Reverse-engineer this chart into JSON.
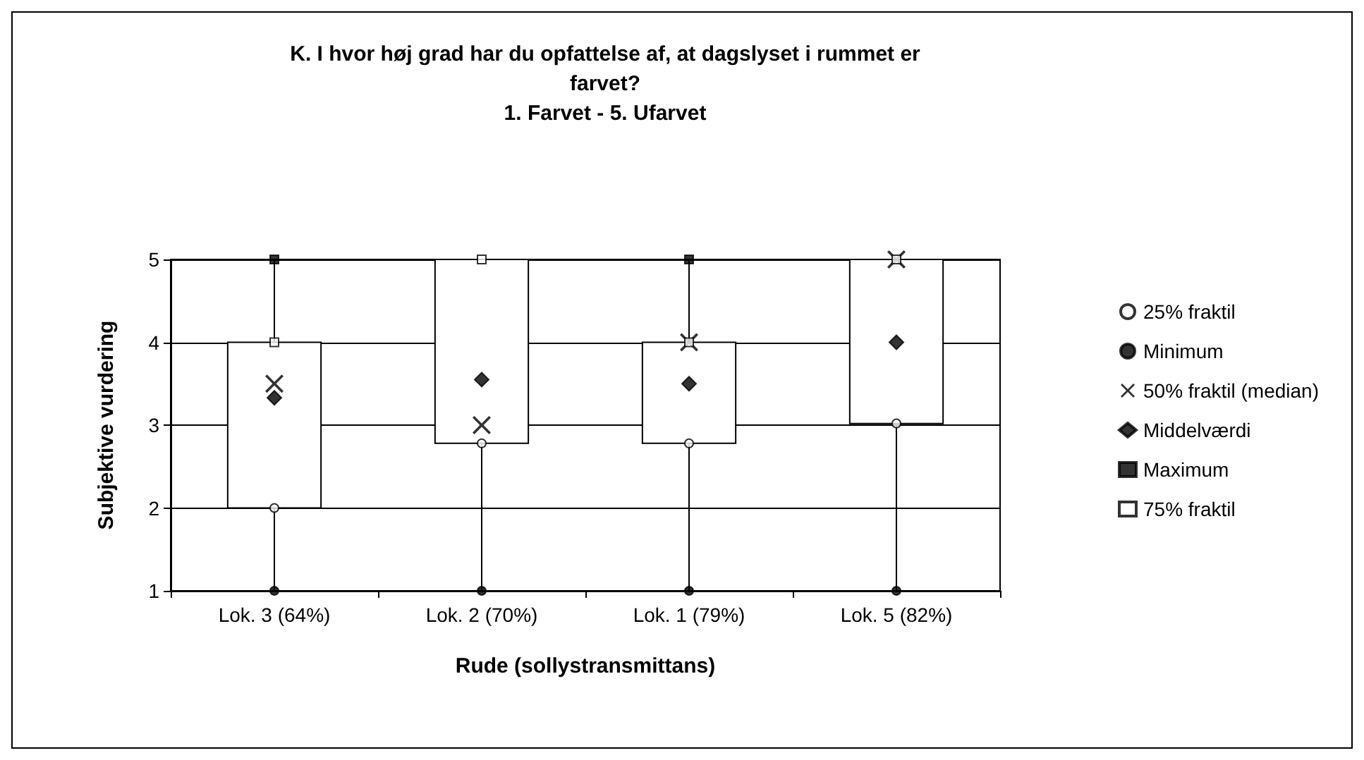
{
  "chart_data": {
    "type": "box",
    "title": "K. I hvor høj grad har du opfattelse af, at dagslyset i rummet er\nfarvet?\n1. Farvet - 5. Ufarvet",
    "xlabel": "Rude (sollystransmittans)",
    "ylabel": "Subjektive vurdering",
    "categories": [
      "Lok. 3 (64%)",
      "Lok. 2 (70%)",
      "Lok. 1 (79%)",
      "Lok. 5 (82%)"
    ],
    "boxes": [
      {
        "low": 1,
        "q1": 2,
        "q3": 4,
        "high": 5
      },
      {
        "low": 1,
        "q1": 2.78,
        "q3": 5,
        "high": 5
      },
      {
        "low": 1,
        "q1": 2.78,
        "q3": 4,
        "high": 5
      },
      {
        "low": 1,
        "q1": 3.02,
        "q3": 5,
        "high": 5
      }
    ],
    "series": [
      {
        "name": "25% fraktil",
        "type": "scatter",
        "marker": "circle",
        "color": "#ffffff",
        "values": [
          2,
          2.78,
          2.78,
          3.02
        ]
      },
      {
        "name": "Minimum",
        "type": "scatter",
        "marker": "circle",
        "color": "#000000",
        "values": [
          1,
          1,
          1,
          1
        ]
      },
      {
        "name": "50% fraktil (median)",
        "type": "scatter",
        "marker": "cross",
        "color": "#000000",
        "values": [
          3.5,
          3,
          4,
          5
        ]
      },
      {
        "name": "Middelværdi",
        "type": "scatter",
        "marker": "diamond",
        "color": "#000000",
        "values": [
          3.33,
          3.55,
          3.5,
          4
        ]
      },
      {
        "name": "Maximum",
        "type": "scatter",
        "marker": "square",
        "color": "#000000",
        "values": [
          5,
          null,
          5,
          null
        ]
      },
      {
        "name": "75% fraktil",
        "type": "scatter",
        "marker": "square",
        "color": "#ffffff",
        "values": [
          4,
          5,
          4,
          5
        ]
      }
    ],
    "ylim": [
      1,
      5
    ],
    "yticks": [
      1,
      2,
      3,
      4,
      5
    ],
    "grid": "y",
    "legend": "right"
  }
}
